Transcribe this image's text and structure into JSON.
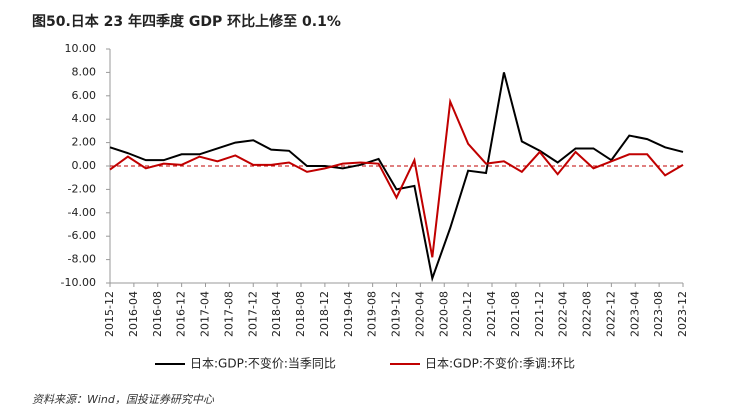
{
  "chart_data": {
    "type": "line",
    "title": "图50.日本 23 年四季度 GDP 环比上修至 0.1%",
    "source": "资料来源：Wind，国投证券研究中心",
    "x": [
      "2015-12",
      "2016-03",
      "2016-06",
      "2016-09",
      "2016-12",
      "2017-03",
      "2017-06",
      "2017-09",
      "2017-12",
      "2018-03",
      "2018-06",
      "2018-09",
      "2018-12",
      "2019-03",
      "2019-06",
      "2019-09",
      "2019-12",
      "2020-03",
      "2020-06",
      "2020-09",
      "2020-12",
      "2021-03",
      "2021-06",
      "2021-09",
      "2021-12",
      "2022-03",
      "2022-06",
      "2022-09",
      "2022-12",
      "2023-03",
      "2023-06",
      "2023-09",
      "2023-12"
    ],
    "xlim": [
      "2015-12",
      "2023-12"
    ],
    "xticks": [
      "2015-12",
      "2016-04",
      "2016-08",
      "2016-12",
      "2017-04",
      "2017-08",
      "2017-12",
      "2018-04",
      "2018-08",
      "2018-12",
      "2019-04",
      "2019-08",
      "2019-12",
      "2020-04",
      "2020-08",
      "2020-12",
      "2021-04",
      "2021-08",
      "2021-12",
      "2022-04",
      "2022-08",
      "2022-12",
      "2023-04",
      "2023-08",
      "2023-12"
    ],
    "series": [
      {
        "name": "日本:GDP:不变价:当季同比",
        "color": "#000000",
        "values": [
          1.6,
          1.1,
          0.5,
          0.5,
          1.0,
          1.0,
          1.5,
          2.0,
          2.2,
          1.4,
          1.3,
          0.0,
          0.0,
          -0.2,
          0.1,
          0.6,
          -2.0,
          -1.7,
          -9.6,
          -5.3,
          -0.4,
          -0.6,
          8.0,
          2.1,
          1.3,
          0.3,
          1.5,
          1.5,
          0.5,
          2.6,
          2.3,
          1.6,
          1.2
        ]
      },
      {
        "name": "日本:GDP:不变价:季调:环比",
        "color": "#c00000",
        "values": [
          -0.3,
          0.8,
          -0.2,
          0.2,
          0.1,
          0.8,
          0.4,
          0.9,
          0.1,
          0.1,
          0.3,
          -0.5,
          -0.2,
          0.2,
          0.3,
          0.2,
          -2.7,
          0.5,
          -7.8,
          5.5,
          1.9,
          0.2,
          0.4,
          -0.5,
          1.2,
          -0.7,
          1.2,
          -0.2,
          0.4,
          1.0,
          1.0,
          -0.8,
          0.1
        ]
      }
    ],
    "ylim": [
      -10,
      10
    ],
    "yticks": [
      {
        "value": -10,
        "label": "-10.00"
      },
      {
        "value": -8,
        "label": "-8.00"
      },
      {
        "value": -6,
        "label": "-6.00"
      },
      {
        "value": -4,
        "label": "-4.00"
      },
      {
        "value": -2,
        "label": "-2.00"
      },
      {
        "value": 0,
        "label": "0.00"
      },
      {
        "value": 2,
        "label": "2.00"
      },
      {
        "value": 4,
        "label": "4.00"
      },
      {
        "value": 6,
        "label": "6.00"
      },
      {
        "value": 8,
        "label": "8.00"
      },
      {
        "value": 10,
        "label": "10.00"
      }
    ],
    "zero_line_color": "#c00000",
    "legend": "bottom"
  }
}
